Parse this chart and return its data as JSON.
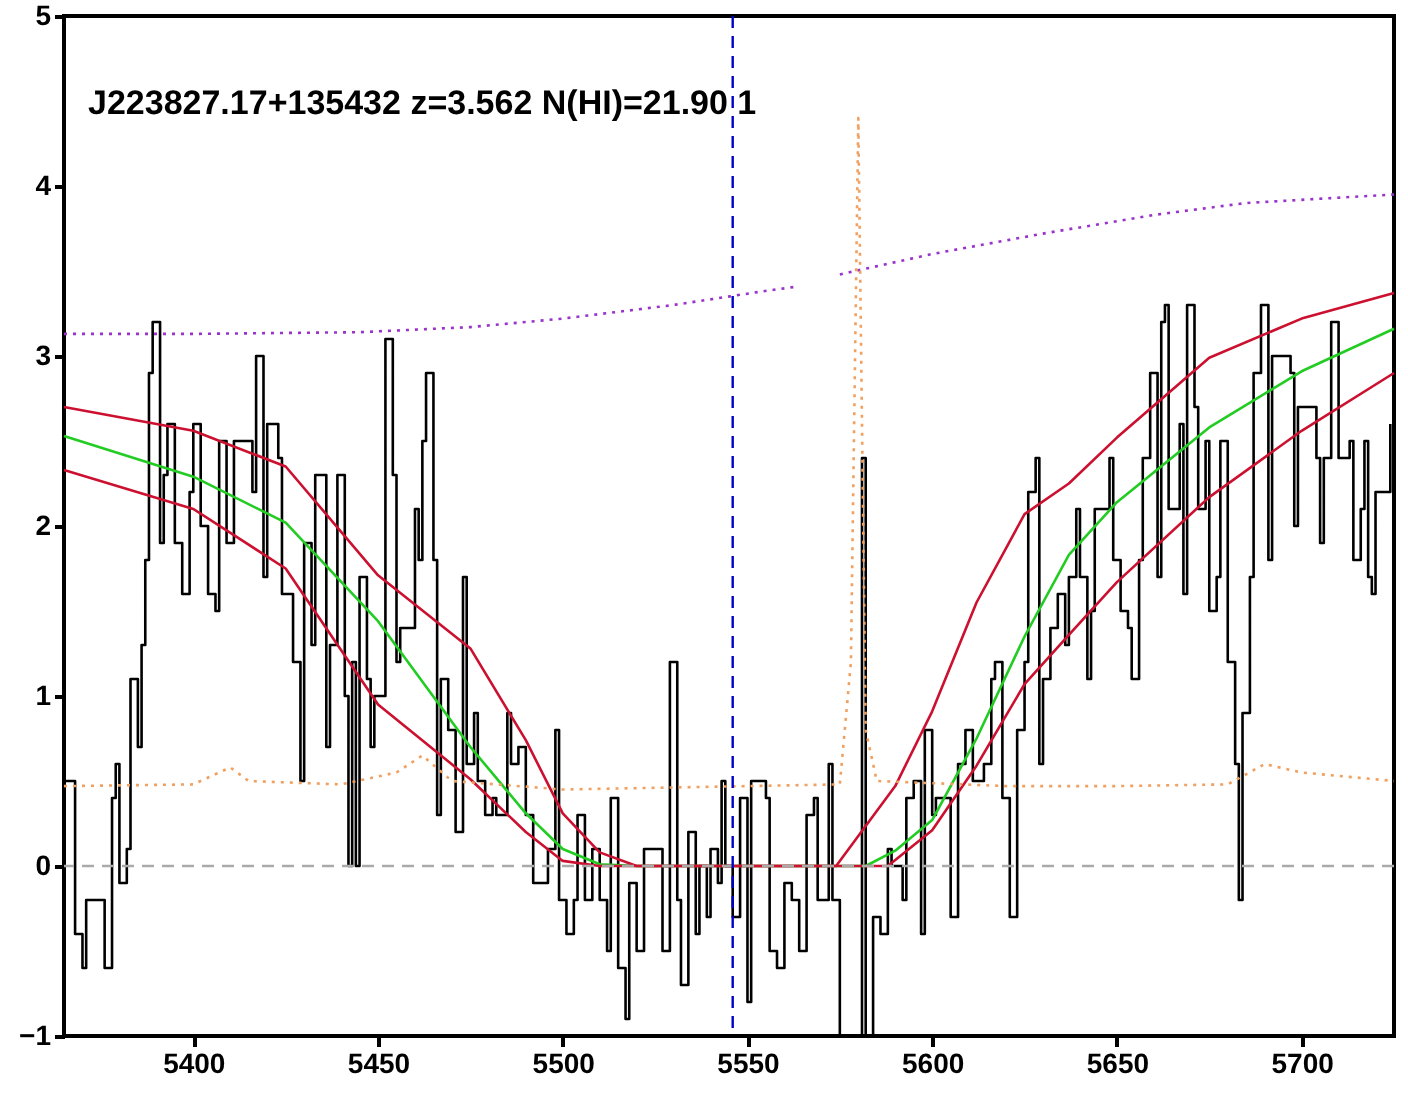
{
  "chart_data": {
    "type": "line",
    "annotations": [
      "J223827.17+135432 z=3.562 N(HI)=21.90 1"
    ],
    "xlim": [
      5365,
      5725
    ],
    "xticks": [
      5400,
      5450,
      5500,
      5550,
      5600,
      5650,
      5700
    ],
    "ylim": [
      -1,
      5
    ],
    "yticks": [
      -1,
      0,
      1,
      2,
      3,
      4,
      5
    ],
    "series": [
      {
        "type": "step",
        "color": "#000000",
        "x": [
          5365,
          5368,
          5370,
          5371,
          5376,
          5378,
          5379,
          5380,
          5382,
          5383,
          5385,
          5386,
          5387,
          5388,
          5389,
          5391,
          5392,
          5393,
          5395,
          5397,
          5399,
          5400,
          5402,
          5404,
          5406,
          5407,
          5409,
          5411,
          5416,
          5417,
          5419,
          5420,
          5423,
          5424,
          5426,
          5427,
          5429,
          5430,
          5432,
          5433,
          5436,
          5437,
          5439,
          5441,
          5442,
          5443,
          5444,
          5445,
          5447,
          5448,
          5449,
          5452,
          5454,
          5455,
          5456,
          5460,
          5461,
          5462,
          5463,
          5465,
          5466,
          5467,
          5469,
          5471,
          5473,
          5474,
          5476,
          5477,
          5479,
          5481,
          5482,
          5485,
          5486,
          5488,
          5490,
          5492,
          5496,
          5498,
          5499,
          5501,
          5503,
          5504,
          5506,
          5508,
          5510,
          5512,
          5513,
          5515,
          5517,
          5518,
          5520,
          5522,
          5527,
          5529,
          5531,
          5532,
          5534,
          5536,
          5537,
          5539,
          5540,
          5542,
          5543,
          5544,
          5546,
          5548,
          5550,
          5551,
          5555,
          5556,
          5558,
          5560,
          5562,
          5564,
          5566,
          5568,
          5569,
          5572,
          5573,
          5575,
          5581,
          5582,
          5584,
          5586,
          5588,
          5589,
          5592,
          5593,
          5595,
          5597,
          5598,
          5600,
          5601,
          5603,
          5605,
          5607,
          5609,
          5611,
          5614,
          5616,
          5617,
          5619,
          5621,
          5623,
          5625,
          5626,
          5628,
          5629,
          5630,
          5632,
          5634,
          5636,
          5637,
          5639,
          5640,
          5642,
          5643,
          5644,
          5648,
          5649,
          5651,
          5653,
          5654,
          5656,
          5657,
          5659,
          5661,
          5662,
          5663,
          5664,
          5667,
          5668,
          5669,
          5671,
          5672,
          5674,
          5675,
          5677,
          5678,
          5680,
          5682,
          5683,
          5684,
          5686,
          5687,
          5689,
          5691,
          5692,
          5697,
          5698,
          5699,
          5702,
          5704,
          5705,
          5706,
          5708,
          5710,
          5713,
          5714,
          5716,
          5717,
          5718,
          5719,
          5720,
          5724
        ],
        "values": [
          0.5,
          -0.4,
          -0.6,
          -0.2,
          -0.6,
          0.4,
          0.6,
          -0.1,
          0.1,
          1.1,
          0.7,
          1.3,
          1.8,
          2.9,
          3.2,
          1.9,
          2.3,
          2.6,
          1.9,
          1.6,
          2.2,
          2.6,
          2.0,
          1.6,
          1.5,
          2.5,
          1.9,
          2.5,
          2.2,
          3.0,
          1.7,
          2.6,
          2.4,
          1.6,
          1.6,
          1.2,
          0.5,
          1.9,
          1.3,
          2.3,
          0.7,
          1.3,
          2.3,
          1.0,
          0.0,
          1.2,
          0.0,
          1.7,
          1.1,
          0.7,
          1.0,
          3.1,
          2.3,
          1.2,
          1.4,
          2.1,
          1.8,
          2.5,
          2.9,
          1.8,
          0.3,
          1.1,
          0.8,
          0.2,
          1.7,
          0.6,
          0.9,
          0.5,
          0.3,
          0.4,
          0.3,
          0.9,
          0.6,
          0.7,
          0.3,
          -0.1,
          0.1,
          0.8,
          -0.2,
          -0.4,
          -0.2,
          0.3,
          -0.2,
          0.1,
          -0.2,
          -0.5,
          0.4,
          -0.6,
          -0.9,
          -0.1,
          -0.5,
          0.1,
          -0.5,
          1.2,
          -0.2,
          -0.7,
          0.2,
          -0.4,
          0.0,
          -0.3,
          0.1,
          -0.1,
          0.5,
          0.0,
          -0.3,
          0.4,
          -0.8,
          0.5,
          0.4,
          -0.5,
          -0.6,
          -0.1,
          -0.2,
          -0.5,
          0.3,
          0.4,
          -0.2,
          0.6,
          -0.2,
          -1.0,
          2.4,
          -1.0,
          -0.3,
          -0.4,
          0.1,
          0.0,
          -0.2,
          0.4,
          0.5,
          -0.4,
          0.8,
          0.3,
          0.4,
          0.4,
          -0.3,
          0.6,
          0.8,
          0.5,
          0.6,
          1.1,
          1.2,
          0.4,
          -0.3,
          0.8,
          1.2,
          2.2,
          2.4,
          0.6,
          1.1,
          1.4,
          1.6,
          1.3,
          1.7,
          2.1,
          1.7,
          1.1,
          1.5,
          2.1,
          2.4,
          1.8,
          1.5,
          1.4,
          1.1,
          1.8,
          2.4,
          2.9,
          1.7,
          3.2,
          3.3,
          2.1,
          2.6,
          1.6,
          3.3,
          2.7,
          2.1,
          2.5,
          1.5,
          1.7,
          2.5,
          1.2,
          0.6,
          -0.2,
          0.9,
          1.7,
          2.9,
          3.3,
          1.8,
          3.0,
          2.9,
          2.0,
          2.7,
          2.7,
          2.4,
          1.9,
          2.4,
          3.2,
          2.4,
          2.5,
          1.8,
          2.1,
          2.5,
          1.7,
          1.6,
          2.2,
          2.6
        ]
      },
      {
        "type": "line",
        "color": "#22cc22",
        "x": [
          5365,
          5400,
          5425,
          5450,
          5475,
          5490,
          5500,
          5510,
          5520,
          5550,
          5582,
          5590,
          5600,
          5612,
          5625,
          5637,
          5650,
          5675,
          5700,
          5725
        ],
        "values": [
          2.53,
          2.29,
          2.02,
          1.44,
          0.7,
          0.31,
          0.1,
          0.01,
          0.0,
          0.0,
          0.0,
          0.09,
          0.27,
          0.75,
          1.35,
          1.83,
          2.14,
          2.58,
          2.91,
          3.16
        ]
      },
      {
        "type": "line",
        "color": "#cc1030",
        "x": [
          5365,
          5400,
          5425,
          5450,
          5475,
          5490,
          5500,
          5510,
          5520,
          5550,
          5574,
          5590,
          5600,
          5612,
          5625,
          5637,
          5650,
          5675,
          5700,
          5725
        ],
        "values": [
          2.7,
          2.56,
          2.35,
          1.71,
          1.28,
          0.74,
          0.31,
          0.08,
          0.0,
          0.0,
          0.0,
          0.47,
          0.91,
          1.55,
          2.07,
          2.25,
          2.52,
          2.99,
          3.22,
          3.37
        ]
      },
      {
        "type": "line",
        "color": "#cc1030",
        "x": [
          5365,
          5400,
          5425,
          5450,
          5475,
          5490,
          5500,
          5510,
          5550,
          5588,
          5600,
          5612,
          5625,
          5637,
          5650,
          5675,
          5700,
          5725
        ],
        "values": [
          2.33,
          2.1,
          1.75,
          0.95,
          0.51,
          0.2,
          0.03,
          0.0,
          0.0,
          0.0,
          0.21,
          0.59,
          1.07,
          1.36,
          1.67,
          2.17,
          2.56,
          2.9
        ]
      },
      {
        "type": "line",
        "color": "#9933cc",
        "line_style": "dotted",
        "x": [
          5365,
          5400,
          5445,
          5475,
          5500,
          5530,
          5554,
          5564,
          5570,
          5575,
          5600,
          5630,
          5660,
          5685,
          5725
        ],
        "values": [
          3.13,
          3.13,
          3.14,
          3.17,
          3.22,
          3.3,
          3.38,
          3.41,
          null,
          3.48,
          3.6,
          3.72,
          3.83,
          3.9,
          3.95
        ]
      },
      {
        "type": "line",
        "color": "#f0a060",
        "line_style": "dotted",
        "x": [
          5365,
          5400,
          5410,
          5415,
          5440,
          5455,
          5462,
          5470,
          5500,
          5550,
          5575,
          5578,
          5580,
          5582,
          5585,
          5620,
          5650,
          5680,
          5690,
          5700,
          5725
        ],
        "values": [
          0.47,
          0.48,
          0.58,
          0.5,
          0.48,
          0.55,
          0.65,
          0.5,
          0.45,
          0.47,
          0.48,
          1.2,
          4.4,
          0.8,
          0.5,
          0.47,
          0.47,
          0.48,
          0.6,
          0.55,
          0.5
        ]
      }
    ],
    "ref_lines": [
      {
        "axis": "y",
        "value": 0,
        "color": "#aaaaaa",
        "line_style": "dashed"
      },
      {
        "axis": "x",
        "value": 5546,
        "color": "#0000cc",
        "line_style": "dashed"
      }
    ]
  }
}
